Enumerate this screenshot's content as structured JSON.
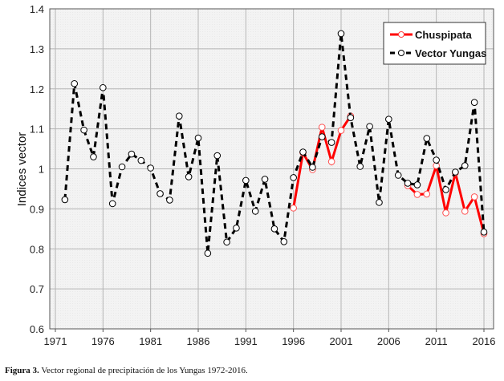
{
  "chart_data": {
    "type": "line",
    "title": "",
    "xlabel": "",
    "ylabel": "Indices  vector",
    "xlim": [
      1971,
      2016
    ],
    "ylim": [
      0.6,
      1.4
    ],
    "xticks": [
      1971,
      1976,
      1981,
      1986,
      1991,
      1996,
      2001,
      2006,
      2011,
      2016
    ],
    "yticks": [
      "0.6",
      "0.7",
      "0.8",
      "0.9",
      "1",
      "1.1",
      "1.2",
      "1.3",
      "1.4"
    ],
    "grid": true,
    "legend_position": "top-right",
    "x": [
      1972,
      1973,
      1974,
      1975,
      1976,
      1977,
      1978,
      1979,
      1980,
      1981,
      1982,
      1983,
      1984,
      1985,
      1986,
      1987,
      1988,
      1989,
      1990,
      1991,
      1992,
      1993,
      1994,
      1995,
      1996,
      1997,
      1998,
      1999,
      2000,
      2001,
      2002,
      2003,
      2004,
      2005,
      2006,
      2007,
      2008,
      2009,
      2010,
      2011,
      2012,
      2013,
      2014,
      2015,
      2016
    ],
    "series": [
      {
        "name": "Chuspipata",
        "color": "#ff0000",
        "style": "solid",
        "values": [
          null,
          null,
          null,
          null,
          null,
          null,
          null,
          null,
          null,
          null,
          null,
          null,
          null,
          null,
          null,
          null,
          null,
          null,
          null,
          null,
          null,
          null,
          null,
          null,
          0.902,
          1.04,
          0.998,
          1.104,
          1.018,
          1.096,
          1.132,
          null,
          null,
          null,
          null,
          null,
          0.958,
          0.936,
          0.937,
          1.008,
          0.89,
          0.99,
          0.894,
          0.93,
          0.838
        ]
      },
      {
        "name": "Vector Yungas",
        "color": "#000000",
        "style": "dashed",
        "values": [
          0.923,
          1.213,
          1.097,
          1.03,
          1.203,
          0.913,
          1.005,
          1.037,
          1.021,
          1.002,
          0.938,
          0.922,
          1.132,
          0.98,
          1.077,
          0.789,
          1.033,
          0.817,
          0.852,
          0.971,
          0.894,
          0.974,
          0.85,
          0.818,
          0.978,
          1.042,
          1.004,
          1.08,
          1.066,
          1.338,
          1.128,
          1.006,
          1.106,
          0.916,
          1.124,
          0.984,
          0.964,
          0.96,
          1.076,
          1.022,
          0.948,
          0.992,
          1.008,
          1.166,
          0.842
        ]
      }
    ]
  },
  "caption": {
    "label": "Figura 3.",
    "text": " Vector regional de precipitación de los Yungas 1972-2016."
  }
}
